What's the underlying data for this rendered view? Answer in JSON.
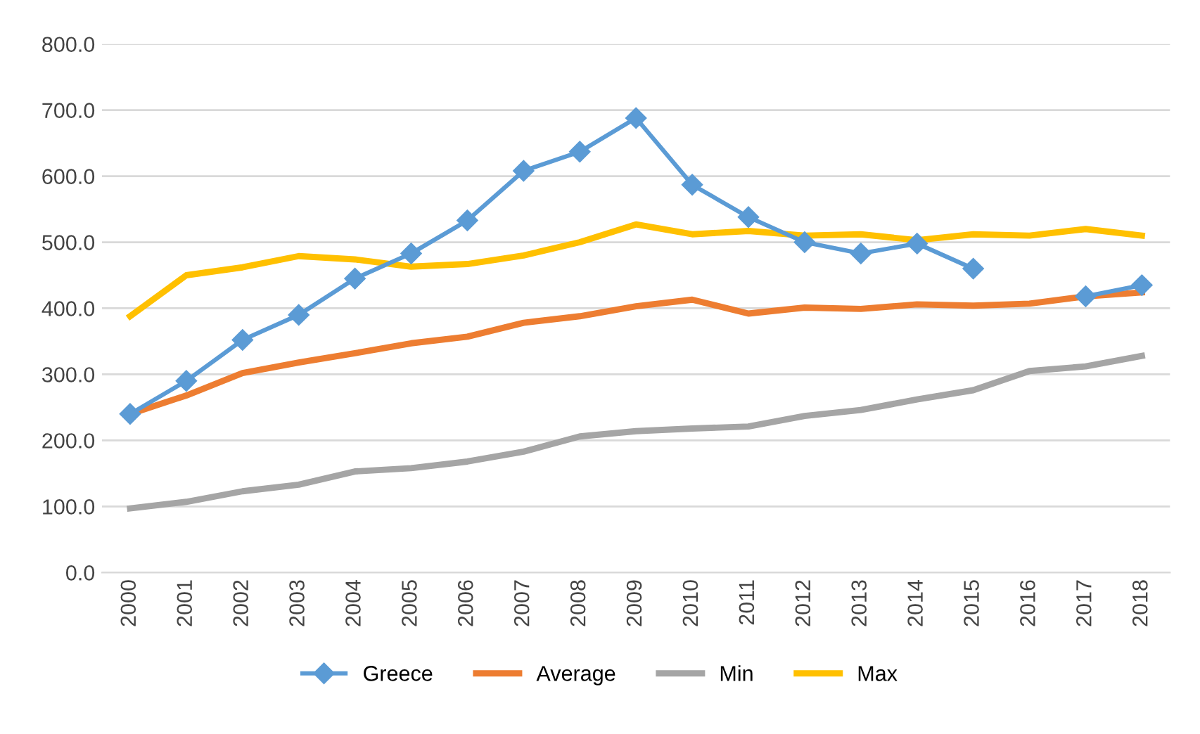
{
  "chart_data": {
    "type": "line",
    "categories": [
      "2000",
      "2001",
      "2002",
      "2003",
      "2004",
      "2005",
      "2006",
      "2007",
      "2008",
      "2009",
      "2010",
      "2011",
      "2012",
      "2013",
      "2014",
      "2015",
      "2016",
      "2017",
      "2018"
    ],
    "series": [
      {
        "name": "Greece",
        "color": "#5b9bd5",
        "marker": "diamond",
        "values": [
          240,
          290,
          352,
          390,
          445,
          483,
          533,
          608,
          637,
          688,
          587,
          538,
          500,
          483,
          498,
          460,
          null,
          418,
          435
        ]
      },
      {
        "name": "Average",
        "color": "#ed7d31",
        "marker": "none",
        "values": [
          240,
          268,
          302,
          318,
          332,
          347,
          357,
          378,
          388,
          403,
          413,
          392,
          401,
          399,
          406,
          404,
          407,
          418,
          424
        ]
      },
      {
        "name": "Min",
        "color": "#a5a5a5",
        "marker": "none",
        "values": [
          97,
          107,
          123,
          133,
          153,
          158,
          168,
          183,
          206,
          214,
          218,
          221,
          237,
          246,
          262,
          276,
          305,
          312,
          328
        ]
      },
      {
        "name": "Max",
        "color": "#ffc000",
        "marker": "none",
        "values": [
          388,
          450,
          462,
          479,
          474,
          463,
          467,
          480,
          500,
          527,
          512,
          517,
          510,
          512,
          503,
          512,
          510,
          520,
          510
        ]
      }
    ],
    "ylim": [
      0,
      800
    ],
    "yticks": [
      {
        "value": 0,
        "label": "0.0"
      },
      {
        "value": 100,
        "label": "100.0"
      },
      {
        "value": 200,
        "label": "200.0"
      },
      {
        "value": 300,
        "label": "300.0"
      },
      {
        "value": 400,
        "label": "400.0"
      },
      {
        "value": 500,
        "label": "500.0"
      },
      {
        "value": 600,
        "label": "600.0"
      },
      {
        "value": 700,
        "label": "700.0"
      },
      {
        "value": 800,
        "label": "800.0"
      }
    ],
    "grid": "y",
    "legend": "bottom",
    "line_style": "solid"
  }
}
